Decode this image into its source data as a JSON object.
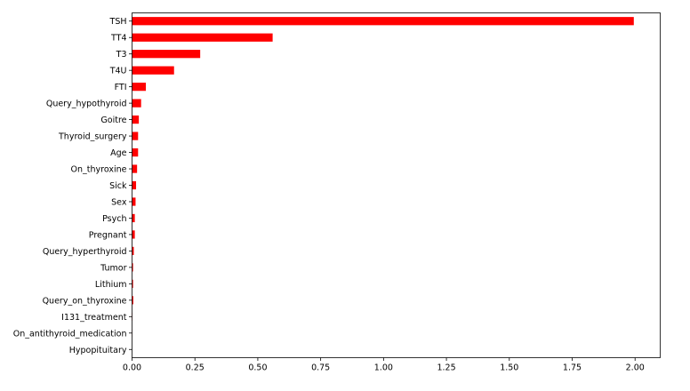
{
  "chart_data": {
    "type": "bar",
    "orientation": "horizontal",
    "categories": [
      "TSH",
      "TT4",
      "T3",
      "T4U",
      "FTI",
      "Query_hypothyroid",
      "Goitre",
      "Thyroid_surgery",
      "Age",
      "On_thyroxine",
      "Sick",
      "Sex",
      "Psych",
      "Pregnant",
      "Query_hyperthyroid",
      "Tumor",
      "Lithium",
      "Query_on_thyroxine",
      "I131_treatment",
      "On_antithyroid_medication",
      "Hypopituitary"
    ],
    "values": [
      1.995,
      0.559,
      0.271,
      0.167,
      0.055,
      0.036,
      0.027,
      0.024,
      0.024,
      0.02,
      0.016,
      0.014,
      0.011,
      0.011,
      0.007,
      0.004,
      0.004,
      0.005,
      0.001,
      0.0005,
      0.0
    ],
    "xticks": [
      "0.00",
      "0.25",
      "0.50",
      "0.75",
      "1.00",
      "1.25",
      "1.50",
      "1.75",
      "2.00"
    ],
    "xlim": [
      0,
      2.1
    ],
    "grid": false,
    "bar_color": "#ff0000"
  }
}
